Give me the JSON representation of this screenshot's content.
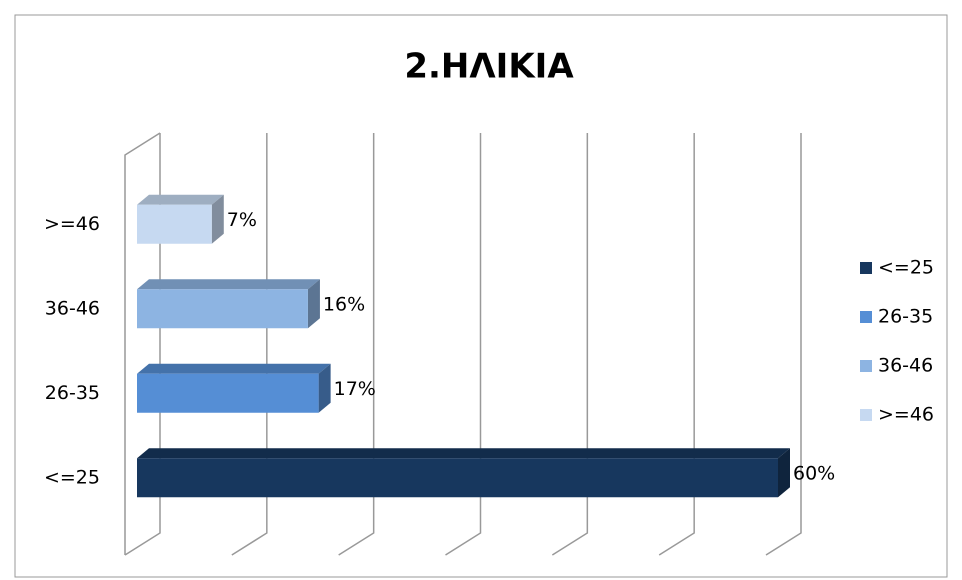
{
  "chart_data": {
    "type": "bar",
    "orientation": "horizontal",
    "title": "2.ΗΛΙΚΙΑ",
    "categories": [
      "<=25",
      "26-35",
      "36-46",
      ">=46"
    ],
    "values": [
      60,
      17,
      16,
      7
    ],
    "value_labels": [
      "60%",
      "17%",
      "16%",
      "7%"
    ],
    "colors": [
      "#17375e",
      "#558ed5",
      "#8db4e2",
      "#c6d9f1"
    ],
    "xlim": [
      0,
      60
    ],
    "xticks": [
      0,
      10,
      20,
      30,
      40,
      50,
      60
    ],
    "grid": true,
    "legend": "right"
  }
}
